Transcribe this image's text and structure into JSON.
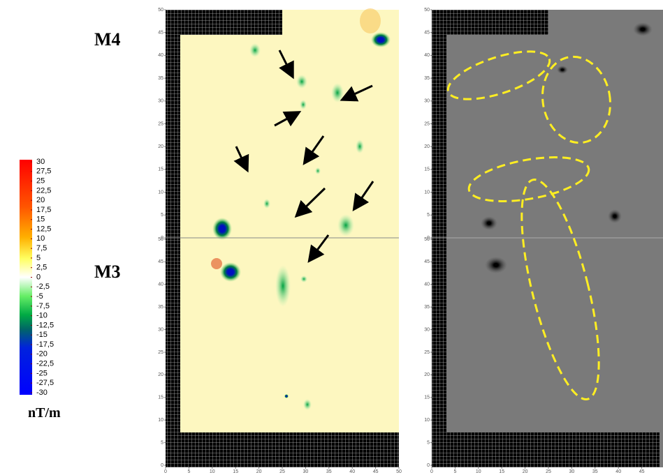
{
  "labels": {
    "top_site": "M4",
    "bottom_site": "M3",
    "unit": "nT/m"
  },
  "colorbar": {
    "ticks": [
      {
        "value": 30,
        "label": "30"
      },
      {
        "value": 27.5,
        "label": "27,5"
      },
      {
        "value": 25,
        "label": "25"
      },
      {
        "value": 22.5,
        "label": "22,5"
      },
      {
        "value": 20,
        "label": "20"
      },
      {
        "value": 17.5,
        "label": "17,5"
      },
      {
        "value": 15,
        "label": "15"
      },
      {
        "value": 12.5,
        "label": "12,5"
      },
      {
        "value": 10,
        "label": "10"
      },
      {
        "value": 7.5,
        "label": "7,5"
      },
      {
        "value": 5,
        "label": "5"
      },
      {
        "value": 2.5,
        "label": "2,5"
      },
      {
        "value": 0,
        "label": "0"
      },
      {
        "value": -2.5,
        "label": "-2,5"
      },
      {
        "value": -5,
        "label": "-5"
      },
      {
        "value": -7.5,
        "label": "-7,5"
      },
      {
        "value": -10,
        "label": "-10"
      },
      {
        "value": -12.5,
        "label": "-12,5"
      },
      {
        "value": -15,
        "label": "-15"
      },
      {
        "value": -17.5,
        "label": "-17,5"
      },
      {
        "value": -20,
        "label": "-20"
      },
      {
        "value": -22.5,
        "label": "-22,5"
      },
      {
        "value": -25,
        "label": "-25"
      },
      {
        "value": -27.5,
        "label": "-27,5"
      },
      {
        "value": -30,
        "label": "-30"
      }
    ],
    "lim": [
      -30,
      30
    ]
  },
  "map_axes": {
    "ylim": [
      0,
      50
    ],
    "xlim": [
      0,
      50
    ],
    "yticks": [
      0,
      5,
      10,
      15,
      20,
      25,
      30,
      35,
      40,
      45,
      50
    ],
    "xticks": [
      0,
      5,
      10,
      15,
      20,
      25,
      30,
      35,
      40,
      45,
      50
    ]
  }
}
